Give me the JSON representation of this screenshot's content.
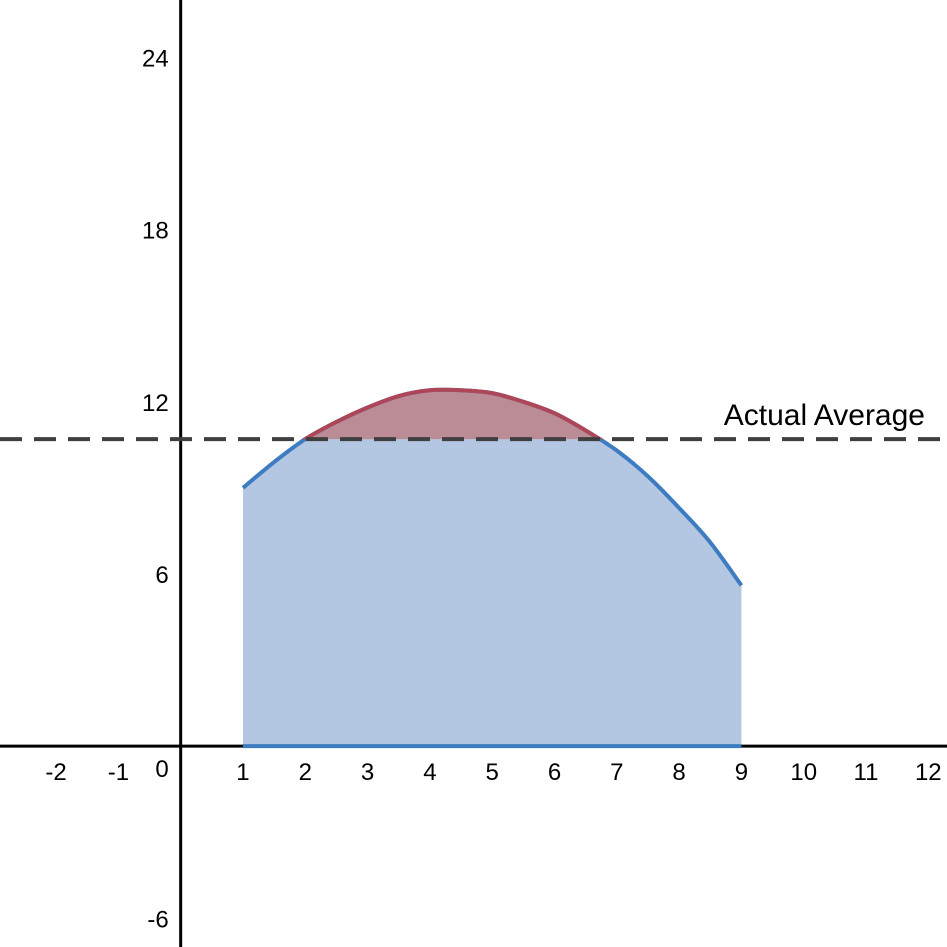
{
  "chart_data": {
    "type": "area",
    "title": "",
    "xlabel": "",
    "ylabel": "",
    "xlim": [
      -2.9,
      12.3
    ],
    "ylim": [
      -7,
      26
    ],
    "x_ticks": [
      "-2",
      "-1",
      "1",
      "2",
      "3",
      "4",
      "5",
      "6",
      "7",
      "8",
      "9",
      "10",
      "11",
      "12"
    ],
    "x_tick_values": [
      -2,
      -1,
      1,
      2,
      3,
      4,
      5,
      6,
      7,
      8,
      9,
      10,
      11,
      12
    ],
    "origin_label": "0",
    "y_ticks": [
      "-6",
      "6",
      "12",
      "18",
      "24"
    ],
    "y_tick_values": [
      -6,
      6,
      12,
      18,
      24
    ],
    "curve": {
      "x": [
        1,
        1.5,
        2,
        2.5,
        3,
        3.5,
        4,
        4.5,
        5,
        5.5,
        6,
        6.5,
        7,
        7.5,
        8,
        8.5,
        9
      ],
      "y": [
        9.0,
        9.9,
        10.7,
        11.3,
        11.8,
        12.2,
        12.4,
        12.4,
        12.3,
        12.0,
        11.6,
        11.0,
        10.3,
        9.4,
        8.3,
        7.1,
        5.6
      ],
      "color": "#3d7cc0",
      "fill": "#b3c6e2"
    },
    "average": {
      "value": 10.7,
      "label": "Actual Average",
      "color": "#3f3f3f"
    },
    "above_average_fill": "#bb8c96",
    "above_average_stroke": "#ad4657",
    "axis_color": "#000000",
    "grid": false
  }
}
